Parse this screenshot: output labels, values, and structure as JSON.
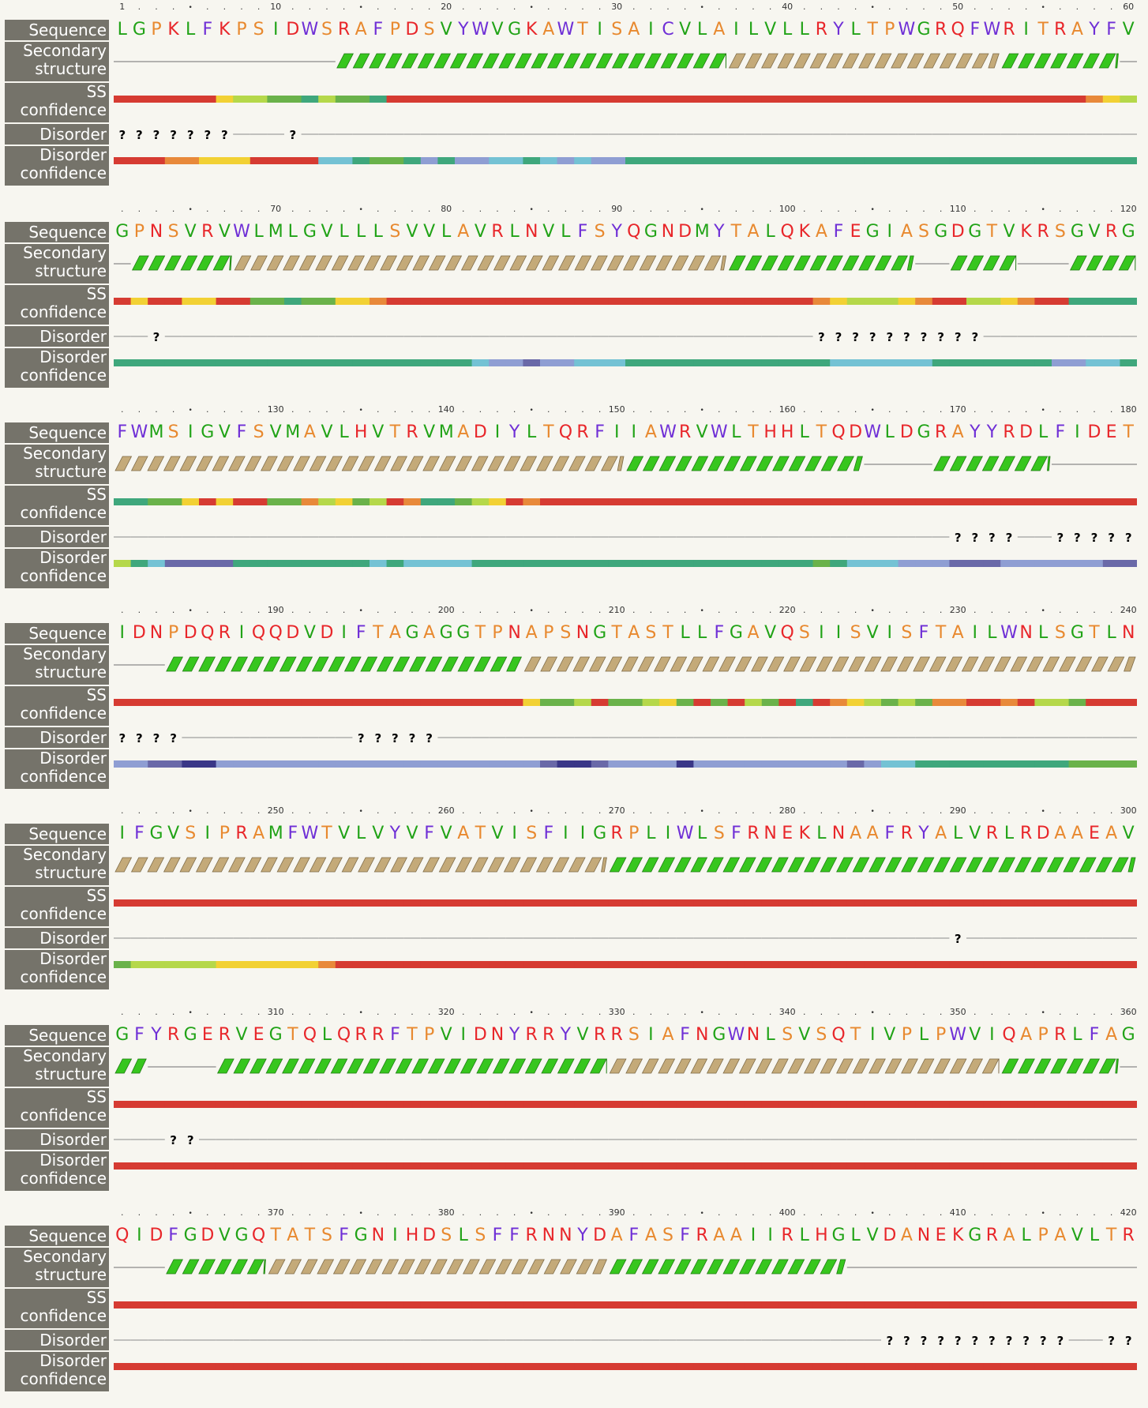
{
  "labels": {
    "sequence": "Sequence",
    "secondary_structure": [
      "Secondary",
      "structure"
    ],
    "ss_confidence": [
      "SS",
      "confidence"
    ],
    "disorder": "Disorder",
    "disorder_confidence": [
      "Disorder",
      "confidence"
    ]
  },
  "sequence": "LGPKLFKPSIDWSRAFPDSVYWVGKAWTISAICVLAILVLLRYLTPWGRQFWRITRAYFVGPNSVRVWLMLGVLLLSVVLAVRLNVLFSYQGNDMYTALQKAFEGIASGDGTVKRSGVRGFWMSIGVFSVMAVLHVTRVMADIYLTQRFIIAWRVWLTHHLTQDWLDGRAYYRDLFIDETIDNPDQRIQQDVDIFTAGAGGTPNAPSNGTASTLLFGAVQSIISVISFTAILWNLSGTLNIFGVSIPRAMFWTVLVYVFVATVISFIIGRPLIWLSFRNEKLNAAFRYALVRLRDAAEAVGFYRGERVEGTQLQRRFTPVIDNYRRYVRRSIAFNGWNLSVSQTIVPLPWVIQAPRLFAGQIDFGDVGQTATSFGNIHDSLSFFRNNYDAFASFRAAIIRLHGLVDANEKGRALPAVLTR",
  "ruler_marks": [
    1,
    10,
    20,
    30,
    40,
    50,
    60,
    70,
    80,
    90,
    100,
    110,
    120,
    130,
    140,
    150,
    160,
    170,
    180,
    190,
    200,
    210,
    220,
    230,
    240,
    250,
    260,
    270,
    280,
    290,
    300,
    310,
    320,
    330,
    340,
    350,
    360,
    370,
    380,
    390,
    400,
    410,
    420
  ],
  "disorder_symbol": "?",
  "colors": {
    "hydrophobic": "#21a317",
    "aromatic": "#6f2fd6",
    "positive": "#e8262a",
    "polar": "#e8892f",
    "label_bg": "#75736a",
    "helix": "#37c61e",
    "transmembrane_helix": "#c4aa79",
    "coil_line": "#8a8a8a",
    "confidence_scale": [
      "#d63b32",
      "#e8893a",
      "#f2d134",
      "#b5d84a",
      "#6ab24a",
      "#3fa77c",
      "#74c2d4",
      "#8f9ed3",
      "#6a69a8",
      "#3a3787"
    ]
  },
  "secondary_structure_segments": [
    {
      "type": "coil",
      "start": 1,
      "end": 13
    },
    {
      "type": "helix",
      "start": 14,
      "end": 36
    },
    {
      "type": "tm_helix",
      "start": 37,
      "end": 52
    },
    {
      "type": "helix",
      "start": 53,
      "end": 59
    },
    {
      "type": "coil",
      "start": 60,
      "end": 61
    },
    {
      "type": "helix",
      "start": 62,
      "end": 67
    },
    {
      "type": "tm_helix",
      "start": 68,
      "end": 96
    },
    {
      "type": "helix",
      "start": 97,
      "end": 107
    },
    {
      "type": "coil",
      "start": 108,
      "end": 109
    },
    {
      "type": "helix",
      "start": 110,
      "end": 113
    },
    {
      "type": "coil",
      "start": 114,
      "end": 116
    },
    {
      "type": "helix",
      "start": 117,
      "end": 150
    },
    {
      "type": "tm_helix",
      "start": 121,
      "end": 150
    },
    {
      "type": "helix",
      "start": 151,
      "end": 164
    },
    {
      "type": "coil",
      "start": 165,
      "end": 168
    },
    {
      "type": "helix",
      "start": 169,
      "end": 175
    },
    {
      "type": "coil",
      "start": 176,
      "end": 183
    },
    {
      "type": "helix",
      "start": 184,
      "end": 204
    },
    {
      "type": "tm_helix",
      "start": 205,
      "end": 243
    },
    {
      "type": "tm_helix",
      "start": 244,
      "end": 269
    },
    {
      "type": "helix",
      "start": 270,
      "end": 302
    },
    {
      "type": "coil",
      "start": 303,
      "end": 306
    },
    {
      "type": "helix",
      "start": 307,
      "end": 329
    },
    {
      "type": "tm_helix",
      "start": 330,
      "end": 352
    },
    {
      "type": "helix",
      "start": 353,
      "end": 359
    },
    {
      "type": "coil",
      "start": 360,
      "end": 363
    },
    {
      "type": "helix",
      "start": 364,
      "end": 369
    },
    {
      "type": "tm_helix",
      "start": 370,
      "end": 389
    },
    {
      "type": "helix",
      "start": 390,
      "end": 403
    },
    {
      "type": "coil",
      "start": 404,
      "end": 420
    }
  ],
  "disordered_residues": [
    1,
    2,
    3,
    4,
    5,
    6,
    7,
    11,
    63,
    102,
    103,
    104,
    105,
    106,
    107,
    108,
    109,
    110,
    111,
    170,
    171,
    172,
    173,
    176,
    177,
    178,
    179,
    180,
    181,
    181,
    182,
    183,
    184,
    195,
    196,
    197,
    198,
    199,
    290,
    304,
    305,
    406,
    407,
    408,
    409,
    410,
    411,
    412,
    413,
    414,
    415,
    416,
    419,
    420
  ],
  "ss_confidence": "0000002334453445000000000000000000000000000000000000000001230200220044544221000000000000000000000000012333210033210055555544202004413243015543201000000000000000000000000000000000000000000000000000000000002443044324040340501234341100103340000000000000000000000000000000000000000000000000000000000000000000000000000000000000000000000000000000000000000000000000000000000000000000000000000000000000000000000000000000000",
  "disorder_confidence": "0001122200006654457577665676775555555555555555555555555555555555555555555555555556778776665555555555556666665555555776653568888555555556566665555555555555555555545666777888777777887788997777777777777777777899877779777777777876655555555544444333332222221"
}
